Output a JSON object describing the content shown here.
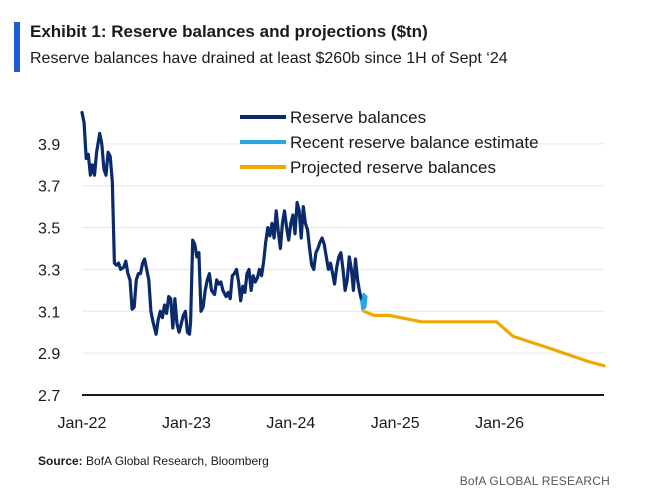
{
  "header": {
    "title": "Exhibit 1: Reserve balances and projections ($tn)",
    "subtitle": "Reserve balances have drained at least $260b since 1H of Sept ‘24",
    "accent_color": "#1f5bd6"
  },
  "footer": {
    "source_label": "Source:",
    "source_text": " BofA Global Research, Bloomberg",
    "brand": "BofA GLOBAL RESEARCH"
  },
  "chart_data": {
    "type": "line",
    "title": "Exhibit 1: Reserve balances and projections ($tn)",
    "subtitle": "Reserve balances have drained at least $260b since 1H of Sept ‘24",
    "xlabel": "",
    "ylabel": "",
    "xlim": [
      2022.0,
      2027.0
    ],
    "ylim": [
      2.7,
      4.1
    ],
    "x_ticks": [
      {
        "x": 2022.0,
        "label": "Jan-22"
      },
      {
        "x": 2023.0,
        "label": "Jan-23"
      },
      {
        "x": 2024.0,
        "label": "Jan-24"
      },
      {
        "x": 2025.0,
        "label": "Jan-25"
      },
      {
        "x": 2026.0,
        "label": "Jan-26"
      }
    ],
    "y_ticks": [
      {
        "y": 2.7,
        "label": "2.7"
      },
      {
        "y": 2.9,
        "label": "2.9"
      },
      {
        "y": 3.1,
        "label": "3.1"
      },
      {
        "y": 3.3,
        "label": "3.3"
      },
      {
        "y": 3.5,
        "label": "3.5"
      },
      {
        "y": 3.7,
        "label": "3.7"
      },
      {
        "y": 3.9,
        "label": "3.9"
      }
    ],
    "grid": "horizontal",
    "legend_position": "top-center",
    "series": [
      {
        "name": "Reserve balances",
        "color": "#0b2a6b",
        "points": [
          [
            2022.0,
            4.05
          ],
          [
            2022.02,
            4.0
          ],
          [
            2022.04,
            3.83
          ],
          [
            2022.06,
            3.85
          ],
          [
            2022.08,
            3.75
          ],
          [
            2022.1,
            3.8
          ],
          [
            2022.12,
            3.75
          ],
          [
            2022.14,
            3.86
          ],
          [
            2022.17,
            3.95
          ],
          [
            2022.19,
            3.9
          ],
          [
            2022.21,
            3.78
          ],
          [
            2022.23,
            3.75
          ],
          [
            2022.25,
            3.86
          ],
          [
            2022.27,
            3.84
          ],
          [
            2022.29,
            3.72
          ],
          [
            2022.31,
            3.33
          ],
          [
            2022.33,
            3.32
          ],
          [
            2022.35,
            3.33
          ],
          [
            2022.37,
            3.3
          ],
          [
            2022.4,
            3.31
          ],
          [
            2022.42,
            3.34
          ],
          [
            2022.44,
            3.28
          ],
          [
            2022.46,
            3.25
          ],
          [
            2022.48,
            3.11
          ],
          [
            2022.5,
            3.12
          ],
          [
            2022.52,
            3.25
          ],
          [
            2022.54,
            3.28
          ],
          [
            2022.56,
            3.28
          ],
          [
            2022.58,
            3.33
          ],
          [
            2022.6,
            3.35
          ],
          [
            2022.62,
            3.3
          ],
          [
            2022.64,
            3.25
          ],
          [
            2022.66,
            3.1
          ],
          [
            2022.68,
            3.05
          ],
          [
            2022.71,
            2.99
          ],
          [
            2022.73,
            3.06
          ],
          [
            2022.75,
            3.1
          ],
          [
            2022.77,
            3.07
          ],
          [
            2022.79,
            3.13
          ],
          [
            2022.81,
            3.09
          ],
          [
            2022.83,
            3.17
          ],
          [
            2022.85,
            3.16
          ],
          [
            2022.87,
            3.02
          ],
          [
            2022.89,
            3.16
          ],
          [
            2022.91,
            3.04
          ],
          [
            2022.93,
            3.0
          ],
          [
            2022.95,
            3.04
          ],
          [
            2022.97,
            3.08
          ],
          [
            2022.99,
            3.1
          ],
          [
            2023.01,
            3.0
          ],
          [
            2023.03,
            2.99
          ],
          [
            2023.04,
            3.05
          ],
          [
            2023.06,
            3.44
          ],
          [
            2023.08,
            3.42
          ],
          [
            2023.1,
            3.36
          ],
          [
            2023.12,
            3.38
          ],
          [
            2023.14,
            3.1
          ],
          [
            2023.16,
            3.12
          ],
          [
            2023.18,
            3.2
          ],
          [
            2023.2,
            3.25
          ],
          [
            2023.22,
            3.28
          ],
          [
            2023.24,
            3.2
          ],
          [
            2023.27,
            3.18
          ],
          [
            2023.29,
            3.25
          ],
          [
            2023.31,
            3.23
          ],
          [
            2023.33,
            3.24
          ],
          [
            2023.35,
            3.2
          ],
          [
            2023.38,
            3.17
          ],
          [
            2023.4,
            3.19
          ],
          [
            2023.42,
            3.16
          ],
          [
            2023.44,
            3.27
          ],
          [
            2023.46,
            3.28
          ],
          [
            2023.48,
            3.3
          ],
          [
            2023.5,
            3.24
          ],
          [
            2023.52,
            3.15
          ],
          [
            2023.54,
            3.22
          ],
          [
            2023.56,
            3.19
          ],
          [
            2023.58,
            3.28
          ],
          [
            2023.6,
            3.3
          ],
          [
            2023.62,
            3.2
          ],
          [
            2023.64,
            3.27
          ],
          [
            2023.66,
            3.24
          ],
          [
            2023.68,
            3.26
          ],
          [
            2023.7,
            3.3
          ],
          [
            2023.72,
            3.27
          ],
          [
            2023.74,
            3.34
          ],
          [
            2023.76,
            3.43
          ],
          [
            2023.78,
            3.5
          ],
          [
            2023.8,
            3.46
          ],
          [
            2023.82,
            3.52
          ],
          [
            2023.84,
            3.45
          ],
          [
            2023.86,
            3.58
          ],
          [
            2023.88,
            3.48
          ],
          [
            2023.9,
            3.4
          ],
          [
            2023.92,
            3.52
          ],
          [
            2023.94,
            3.58
          ],
          [
            2023.96,
            3.5
          ],
          [
            2023.98,
            3.44
          ],
          [
            2024.0,
            3.52
          ],
          [
            2024.02,
            3.56
          ],
          [
            2024.04,
            3.47
          ],
          [
            2024.06,
            3.62
          ],
          [
            2024.08,
            3.58
          ],
          [
            2024.1,
            3.45
          ],
          [
            2024.12,
            3.6
          ],
          [
            2024.14,
            3.52
          ],
          [
            2024.16,
            3.49
          ],
          [
            2024.18,
            3.4
          ],
          [
            2024.2,
            3.32
          ],
          [
            2024.22,
            3.3
          ],
          [
            2024.24,
            3.38
          ],
          [
            2024.26,
            3.4
          ],
          [
            2024.28,
            3.43
          ],
          [
            2024.3,
            3.45
          ],
          [
            2024.32,
            3.42
          ],
          [
            2024.34,
            3.36
          ],
          [
            2024.36,
            3.3
          ],
          [
            2024.38,
            3.33
          ],
          [
            2024.4,
            3.28
          ],
          [
            2024.42,
            3.23
          ],
          [
            2024.44,
            3.31
          ],
          [
            2024.46,
            3.36
          ],
          [
            2024.48,
            3.38
          ],
          [
            2024.5,
            3.3
          ],
          [
            2024.52,
            3.2
          ],
          [
            2024.54,
            3.25
          ],
          [
            2024.56,
            3.36
          ],
          [
            2024.58,
            3.3
          ],
          [
            2024.6,
            3.2
          ],
          [
            2024.62,
            3.35
          ],
          [
            2024.64,
            3.25
          ],
          [
            2024.66,
            3.19
          ],
          [
            2024.68,
            3.15
          ]
        ]
      },
      {
        "name": "Recent reserve balance estimate",
        "color": "#2aa7e0",
        "points": [
          [
            2024.68,
            3.15
          ],
          [
            2024.69,
            3.11
          ],
          [
            2024.7,
            3.18
          ],
          [
            2024.71,
            3.12
          ],
          [
            2024.72,
            3.17
          ]
        ]
      },
      {
        "name": "Projected reserve balances",
        "color": "#f0a800",
        "points": [
          [
            2024.7,
            3.1
          ],
          [
            2024.8,
            3.08
          ],
          [
            2024.95,
            3.08
          ],
          [
            2025.05,
            3.07
          ],
          [
            2025.25,
            3.05
          ],
          [
            2025.5,
            3.05
          ],
          [
            2025.7,
            3.05
          ],
          [
            2025.97,
            3.05
          ],
          [
            2026.13,
            2.98
          ],
          [
            2026.5,
            2.92
          ],
          [
            2026.85,
            2.86
          ],
          [
            2027.0,
            2.84
          ]
        ]
      }
    ]
  }
}
